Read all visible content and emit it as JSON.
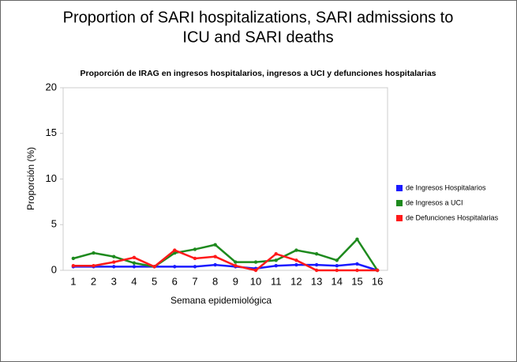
{
  "chart_data": {
    "type": "line",
    "heading": [
      "Proportion of SARI hospitalizations, SARI admissions to",
      "ICU and SARI deaths"
    ],
    "title": "Proporción de IRAG en ingresos hospitalarios, ingresos a UCI y defunciones hospitalarias",
    "x_label": "Semana epidemiológica",
    "y_label": "Proporción (%)",
    "categories": [
      "1",
      "2",
      "3",
      "4",
      "5",
      "6",
      "7",
      "8",
      "9",
      "10",
      "11",
      "12",
      "13",
      "14",
      "15",
      "16"
    ],
    "series": [
      {
        "name": "de Ingresos Hospitalarios",
        "color": "#1a1aff",
        "values": [
          0.4,
          0.4,
          0.4,
          0.4,
          0.4,
          0.4,
          0.4,
          0.6,
          0.4,
          0.2,
          0.5,
          0.6,
          0.6,
          0.5,
          0.7,
          0
        ]
      },
      {
        "name": "de Ingresos a UCI",
        "color": "#1e8a1e",
        "values": [
          1.3,
          1.9,
          1.5,
          0.8,
          0.4,
          1.9,
          2.3,
          2.8,
          0.9,
          0.9,
          1.1,
          2.2,
          1.8,
          1.1,
          3.4,
          0
        ]
      },
      {
        "name": "de Defunciones Hospitalarias",
        "color": "#ff1a1a",
        "values": [
          0.5,
          0.5,
          0.9,
          1.4,
          0.4,
          2.2,
          1.3,
          1.5,
          0.5,
          0,
          1.8,
          1.1,
          0,
          0,
          0,
          0
        ]
      }
    ],
    "ylim": [
      0,
      20
    ],
    "yticks": [
      0,
      5,
      10,
      15,
      20
    ],
    "grid": false,
    "legend": "right"
  }
}
